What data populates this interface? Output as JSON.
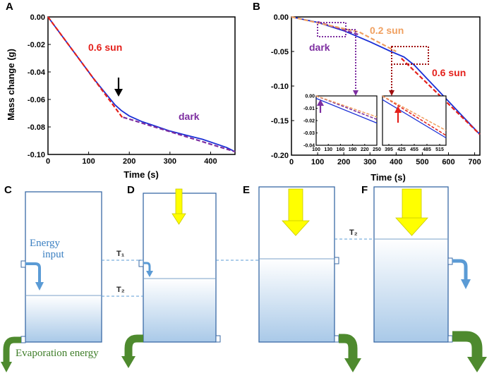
{
  "panels": {
    "a": "A",
    "b": "B",
    "c": "C",
    "d": "D",
    "e": "E",
    "f": "F"
  },
  "colors": {
    "blue": "#1a2fd6",
    "red": "#e4201b",
    "purple": "#7d2ea0",
    "orange": "#f0a060",
    "darkred": "#a01010",
    "yellow": "#ffff00",
    "green": "#4e8a2e",
    "energy_blue": "#5b9bd5"
  },
  "chart_data": [
    {
      "id": "A",
      "type": "line",
      "xlabel": "Time (s)",
      "ylabel": "Mass change (g)",
      "xlim": [
        0,
        460
      ],
      "ylim": [
        -0.1,
        0.0
      ],
      "xticks": [
        "0",
        "100",
        "200",
        "300",
        "400"
      ],
      "yticks": [
        "0.00",
        "-0.02",
        "-0.04",
        "-0.06",
        "-0.08",
        "-0.10"
      ],
      "xtick_values": [
        0,
        100,
        200,
        300,
        400
      ],
      "ytick_values": [
        0.0,
        -0.02,
        -0.04,
        -0.06,
        -0.08,
        -0.1
      ],
      "grid": false,
      "annotations": [
        {
          "text": "0.6 sun",
          "color": "red"
        },
        {
          "text": "dark",
          "color": "purple"
        }
      ],
      "series": [
        {
          "color": "blue",
          "style": "solid",
          "x": [
            0,
            20,
            50,
            80,
            110,
            140,
            165,
            180,
            200,
            230,
            260,
            300,
            340,
            380,
            420,
            440,
            460
          ],
          "y": [
            0,
            -0.008,
            -0.02,
            -0.032,
            -0.044,
            -0.055,
            -0.064,
            -0.068,
            -0.072,
            -0.076,
            -0.079,
            -0.083,
            -0.086,
            -0.089,
            -0.093,
            -0.095,
            -0.098
          ]
        },
        {
          "color": "red",
          "style": "dashed",
          "x": [
            0,
            185
          ],
          "y": [
            0,
            -0.074
          ]
        },
        {
          "color": "purple",
          "style": "dashed",
          "x": [
            185,
            460
          ],
          "y": [
            -0.073,
            -0.098
          ]
        }
      ]
    },
    {
      "id": "B",
      "type": "line",
      "xlabel": "Time (s)",
      "ylabel": "",
      "xlim": [
        0,
        720
      ],
      "ylim": [
        -0.2,
        0.0
      ],
      "xticks": [
        "0",
        "100",
        "200",
        "300",
        "400",
        "500",
        "600",
        "700"
      ],
      "yticks": [
        "0.00",
        "-0.05",
        "-0.10",
        "-0.15",
        "-0.20"
      ],
      "xtick_values": [
        0,
        100,
        200,
        300,
        400,
        500,
        600,
        700
      ],
      "ytick_values": [
        0.0,
        -0.05,
        -0.1,
        -0.15,
        -0.2
      ],
      "grid": false,
      "annotations": [
        {
          "text": "0.2 sun",
          "color": "orange"
        },
        {
          "text": "dark",
          "color": "purple"
        },
        {
          "text": "0.6 sun",
          "color": "red"
        }
      ],
      "series": [
        {
          "color": "blue",
          "style": "solid",
          "x": [
            0,
            100,
            200,
            300,
            380,
            430,
            470,
            520,
            600,
            650,
            720
          ],
          "y": [
            0,
            -0.008,
            -0.02,
            -0.036,
            -0.05,
            -0.058,
            -0.07,
            -0.09,
            -0.122,
            -0.142,
            -0.17
          ]
        },
        {
          "color": "purple",
          "style": "dashed",
          "x": [
            100,
            260
          ],
          "y": [
            -0.007,
            -0.026
          ]
        },
        {
          "color": "orange",
          "style": "dashed",
          "x": [
            0,
            260,
            400
          ],
          "y": [
            0,
            -0.022,
            -0.05
          ]
        },
        {
          "color": "red",
          "style": "dashed",
          "x": [
            420,
            720
          ],
          "y": [
            -0.06,
            -0.17
          ]
        }
      ],
      "insets": [
        {
          "xticks": [
            "100",
            "130",
            "160",
            "190",
            "220",
            "250"
          ],
          "xtick_values": [
            100,
            130,
            160,
            190,
            220,
            250
          ],
          "yticks": [
            "0.00",
            "-0.01",
            "-0.02",
            "-0.03",
            "-0.04"
          ],
          "ytick_values": [
            0,
            -0.01,
            -0.02,
            -0.03,
            -0.04
          ],
          "xlim": [
            100,
            250
          ],
          "ylim": [
            -0.04,
            0.0
          ],
          "series": [
            {
              "color": "blue",
              "style": "solid",
              "x": [
                100,
                250
              ],
              "y": [
                -0.002,
                -0.022
              ]
            },
            {
              "color": "purple",
              "style": "dashed",
              "x": [
                100,
                250
              ],
              "y": [
                0.0,
                -0.019
              ]
            },
            {
              "color": "orange",
              "style": "dashed",
              "x": [
                100,
                250
              ],
              "y": [
                0.0,
                -0.017
              ]
            }
          ]
        },
        {
          "xticks": [
            "395",
            "425",
            "455",
            "485",
            "515"
          ],
          "xtick_values": [
            395,
            425,
            455,
            485,
            515
          ],
          "yticks": [],
          "ytick_values": [],
          "xlim": [
            380,
            530
          ],
          "ylim": [
            -0.04,
            0.0
          ],
          "series": [
            {
              "color": "blue",
              "style": "solid",
              "x": [
                380,
                530
              ],
              "y": [
                -0.003,
                -0.034
              ]
            },
            {
              "color": "red",
              "style": "dashed",
              "x": [
                380,
                530
              ],
              "y": [
                0.0,
                -0.032
              ]
            },
            {
              "color": "orange",
              "style": "dashed",
              "x": [
                380,
                530
              ],
              "y": [
                0.0,
                -0.028
              ]
            }
          ]
        }
      ]
    }
  ],
  "diagram": {
    "energy_input": [
      "Energy",
      "input"
    ],
    "evaporation": "Evaporation energy",
    "t1": "T₁",
    "t2_d": "T₂",
    "t2_f": "T₂"
  }
}
